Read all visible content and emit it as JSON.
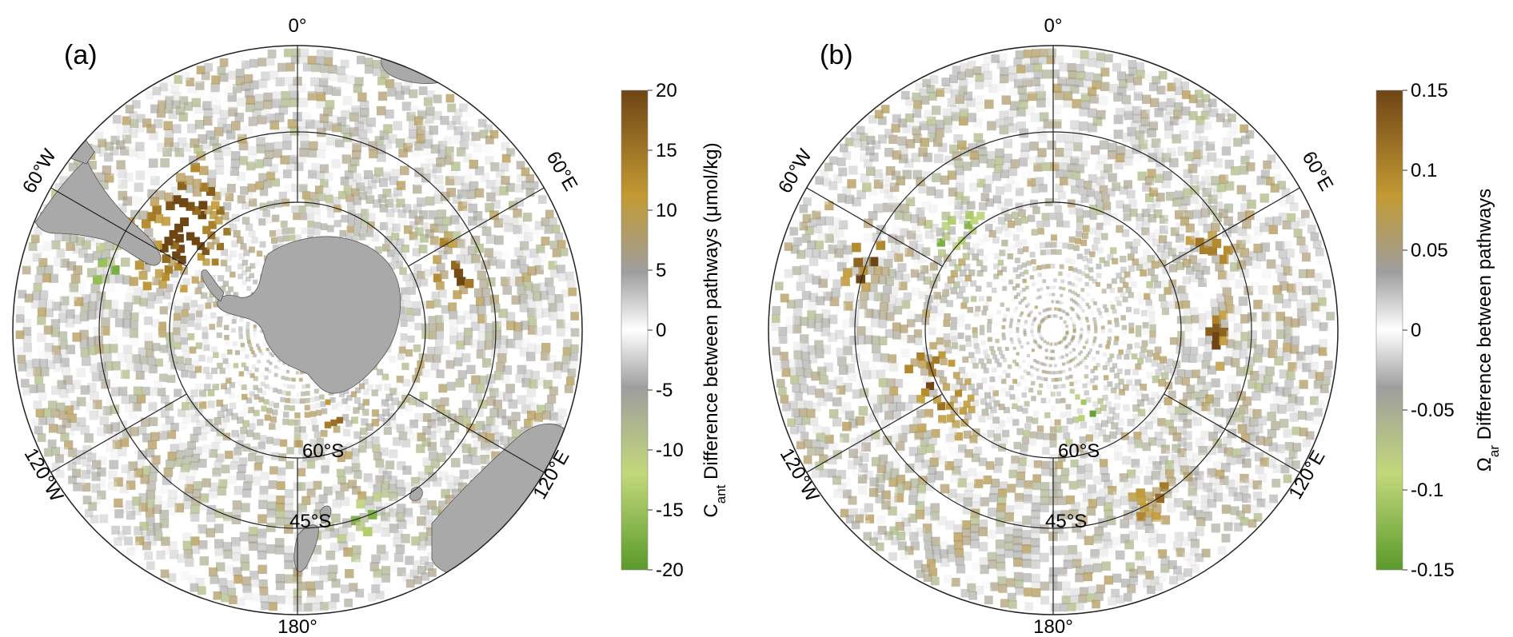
{
  "panels": [
    {
      "id": "a",
      "label": "(a)",
      "lon_labels": {
        "lon0": "0°",
        "lon60e": "60°E",
        "lon120e": "120°E",
        "lon180": "180°",
        "lon120w": "120°W",
        "lon60w": "60°W"
      },
      "lat_labels": {
        "lat60": "60°S",
        "lat45": "45°S"
      },
      "colorbar": {
        "ticks": [
          "20",
          "15",
          "10",
          "5",
          "0",
          "-5",
          "-10",
          "-15",
          "-20"
        ],
        "title_main": "C",
        "title_sub": "ant",
        "title_rest": " Difference between pathways (μmol/kg)"
      },
      "hotspots": [
        {
          "lon": -48,
          "lat": -58,
          "value": 15,
          "spread": 5
        },
        {
          "lon": -52,
          "lat": -62,
          "value": 18,
          "spread": 3
        },
        {
          "lon": -45,
          "lat": -54,
          "value": 12,
          "spread": 4
        },
        {
          "lon": -72,
          "lat": -48,
          "value": -12,
          "spread": 2
        },
        {
          "lon": 68,
          "lat": -55,
          "value": 16,
          "spread": 2
        },
        {
          "lon": 78,
          "lat": -55,
          "value": 12,
          "spread": 2
        },
        {
          "lon": 160,
          "lat": -70,
          "value": 18,
          "spread": 2
        },
        {
          "lon": 160,
          "lat": -48,
          "value": -14,
          "spread": 2
        }
      ]
    },
    {
      "id": "b",
      "label": "(b)",
      "lon_labels": {
        "lon0": "0°",
        "lon60e": "60°E",
        "lon120e": "120°E",
        "lon180": "180°",
        "lon120w": "120°W",
        "lon60w": "60°W"
      },
      "lat_labels": {
        "lat60": "60°S",
        "lat45": "45°S"
      },
      "colorbar": {
        "ticks": [
          "0.15",
          "0.1",
          "0.05",
          "0",
          "-0.05",
          "-0.1",
          "-0.15"
        ],
        "title_main": "Ω",
        "title_sub": "ar",
        "title_rest": " Difference between pathways"
      },
      "hotspots": [
        {
          "lon": -45,
          "lat": -60,
          "value": -0.08,
          "spread": 3
        },
        {
          "lon": -70,
          "lat": -48,
          "value": 0.14,
          "spread": 2
        },
        {
          "lon": -115,
          "lat": -62,
          "value": 0.1,
          "spread": 4
        },
        {
          "lon": 60,
          "lat": -52,
          "value": 0.1,
          "spread": 2
        },
        {
          "lon": 155,
          "lat": -72,
          "value": -0.1,
          "spread": 2
        },
        {
          "lon": 150,
          "lat": -48,
          "value": 0.1,
          "spread": 2
        },
        {
          "lon": 90,
          "lat": -55,
          "value": 0.12,
          "spread": 2
        }
      ]
    }
  ]
}
